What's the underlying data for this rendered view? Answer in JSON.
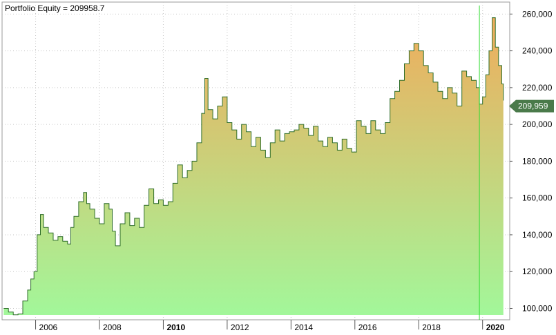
{
  "chart_data": {
    "type": "area",
    "title": "Portfolio Equity = 209958.7",
    "xlabel": "",
    "ylabel": "",
    "x_ticks": [
      {
        "label": "2006",
        "year": 2006,
        "bold": false
      },
      {
        "label": "2008",
        "year": 2008,
        "bold": false
      },
      {
        "label": "2010",
        "year": 2010,
        "bold": true
      },
      {
        "label": "2012",
        "year": 2012,
        "bold": false
      },
      {
        "label": "2014",
        "year": 2014,
        "bold": false
      },
      {
        "label": "2016",
        "year": 2016,
        "bold": false
      },
      {
        "label": "2018",
        "year": 2018,
        "bold": false
      },
      {
        "label": "2020",
        "year": 2020,
        "bold": true
      }
    ],
    "y_ticks": [
      {
        "label": "100,000",
        "value": 100000
      },
      {
        "label": "120,000",
        "value": 120000
      },
      {
        "label": "140,000",
        "value": 140000
      },
      {
        "label": "160,000",
        "value": 160000
      },
      {
        "label": "180,000",
        "value": 180000
      },
      {
        "label": "200,000",
        "value": 200000
      },
      {
        "label": "220,000",
        "value": 220000
      },
      {
        "label": "240,000",
        "value": 240000
      },
      {
        "label": "260,000",
        "value": 260000
      }
    ],
    "xlim": [
      2004.95,
      2020.85
    ],
    "ylim": [
      93800,
      266500
    ],
    "last_value_label": "209,959",
    "last_value": 209959,
    "cursor_x": 2019.9,
    "colors": {
      "line": "#2f6e2a",
      "fill_top": "#f0ac5c",
      "fill_bottom": "#a2f79a",
      "cursor": "#33dd33",
      "badge": "#4a7a4a",
      "grid": "#c6c6c6"
    },
    "series": [
      {
        "x": [
          2005.0,
          2005.15,
          2005.3,
          2005.45,
          2005.6,
          2005.75,
          2005.85,
          2005.95,
          2006.05,
          2006.15,
          2006.25,
          2006.4,
          2006.55,
          2006.7,
          2006.85,
          2007.0,
          2007.1,
          2007.2,
          2007.35,
          2007.5,
          2007.6,
          2007.7,
          2007.85,
          2008.0,
          2008.15,
          2008.3,
          2008.4,
          2008.5,
          2008.65,
          2008.8,
          2008.95,
          2009.1,
          2009.25,
          2009.4,
          2009.55,
          2009.7,
          2009.85,
          2010.0,
          2010.15,
          2010.3,
          2010.45,
          2010.6,
          2010.75,
          2010.9,
          2011.05,
          2011.2,
          2011.3,
          2011.4,
          2011.55,
          2011.7,
          2011.85,
          2012.0,
          2012.15,
          2012.3,
          2012.45,
          2012.6,
          2012.75,
          2012.9,
          2013.05,
          2013.2,
          2013.35,
          2013.5,
          2013.65,
          2013.8,
          2013.95,
          2014.1,
          2014.25,
          2014.4,
          2014.55,
          2014.7,
          2014.85,
          2015.0,
          2015.15,
          2015.3,
          2015.45,
          2015.6,
          2015.75,
          2015.9,
          2016.05,
          2016.2,
          2016.35,
          2016.5,
          2016.65,
          2016.8,
          2016.95,
          2017.1,
          2017.25,
          2017.4,
          2017.55,
          2017.7,
          2017.85,
          2018.0,
          2018.15,
          2018.3,
          2018.45,
          2018.6,
          2018.75,
          2018.9,
          2019.05,
          2019.2,
          2019.35,
          2019.5,
          2019.65,
          2019.8,
          2019.9,
          2020.0,
          2020.1,
          2020.2,
          2020.3,
          2020.4,
          2020.5,
          2020.6,
          2020.65
        ],
        "values": [
          100000,
          98000,
          96500,
          97000,
          104000,
          110000,
          116000,
          120000,
          140000,
          151000,
          144000,
          141000,
          137000,
          139000,
          136500,
          135000,
          144000,
          150000,
          158000,
          163000,
          157000,
          154000,
          149000,
          146000,
          157000,
          154000,
          142000,
          134000,
          146000,
          152000,
          145000,
          149000,
          144000,
          156000,
          165000,
          157000,
          159000,
          156000,
          158000,
          168000,
          178000,
          171000,
          175000,
          180000,
          190000,
          206000,
          225000,
          208000,
          203000,
          210000,
          215000,
          201000,
          197000,
          192000,
          200000,
          196000,
          188000,
          193000,
          186000,
          182000,
          190000,
          197000,
          191000,
          195000,
          196000,
          197000,
          200000,
          198000,
          194000,
          199000,
          191000,
          188000,
          193000,
          190000,
          186000,
          192000,
          187000,
          185000,
          202000,
          199000,
          195000,
          202000,
          197000,
          195000,
          201000,
          214000,
          218000,
          224000,
          233000,
          240000,
          244000,
          240000,
          232000,
          228000,
          223000,
          218000,
          214000,
          220000,
          217000,
          210000,
          229000,
          226000,
          224000,
          220000,
          211000,
          215000,
          227000,
          240000,
          258000,
          242000,
          232000,
          222000,
          213000
        ]
      }
    ]
  }
}
